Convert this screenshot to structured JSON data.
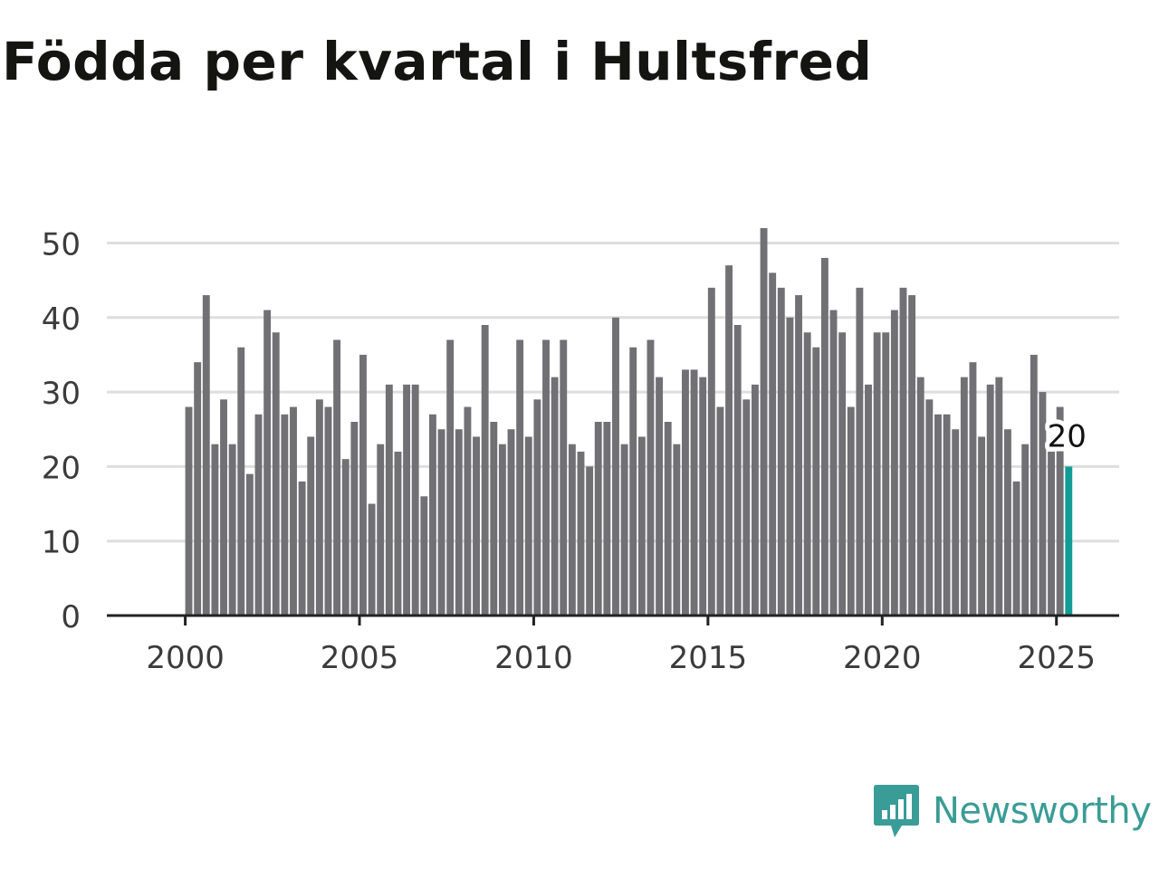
{
  "brand": {
    "name": "Newsworthy",
    "logo_icon": "newsworthy-logo-icon",
    "color": "#3a9c96"
  },
  "colors": {
    "bar": "#717075",
    "highlight": "#139c96",
    "grid": "#dedede",
    "axis": "#222222",
    "text": "#3b3b3b",
    "title": "#141410"
  },
  "chart_data": {
    "type": "bar",
    "title": "Födda per kvartal i Hultsfred",
    "xlabel": "",
    "ylabel": "",
    "x_start": 2000.0,
    "x_step": 0.25,
    "xlim": [
      1997.75,
      2026.8
    ],
    "ylim": [
      0,
      52
    ],
    "yticks": [
      0,
      10,
      20,
      30,
      40,
      50
    ],
    "xticks": [
      2000,
      2005,
      2010,
      2015,
      2020,
      2025
    ],
    "grid": true,
    "values": [
      28,
      34,
      43,
      23,
      29,
      23,
      36,
      19,
      27,
      41,
      38,
      27,
      28,
      18,
      24,
      29,
      28,
      37,
      21,
      26,
      35,
      15,
      23,
      31,
      22,
      31,
      31,
      16,
      27,
      25,
      37,
      25,
      28,
      24,
      39,
      26,
      23,
      25,
      37,
      24,
      29,
      37,
      32,
      37,
      23,
      22,
      20,
      26,
      26,
      40,
      23,
      36,
      24,
      37,
      32,
      26,
      23,
      33,
      33,
      32,
      44,
      28,
      47,
      39,
      29,
      31,
      52,
      46,
      44,
      40,
      43,
      38,
      36,
      48,
      41,
      38,
      28,
      44,
      31,
      38,
      38,
      41,
      44,
      43,
      32,
      29,
      27,
      27,
      25,
      32,
      34,
      24,
      31,
      32,
      25,
      18,
      23,
      35,
      30,
      22,
      28,
      20
    ],
    "highlight_index": 101,
    "annotation": "20"
  }
}
